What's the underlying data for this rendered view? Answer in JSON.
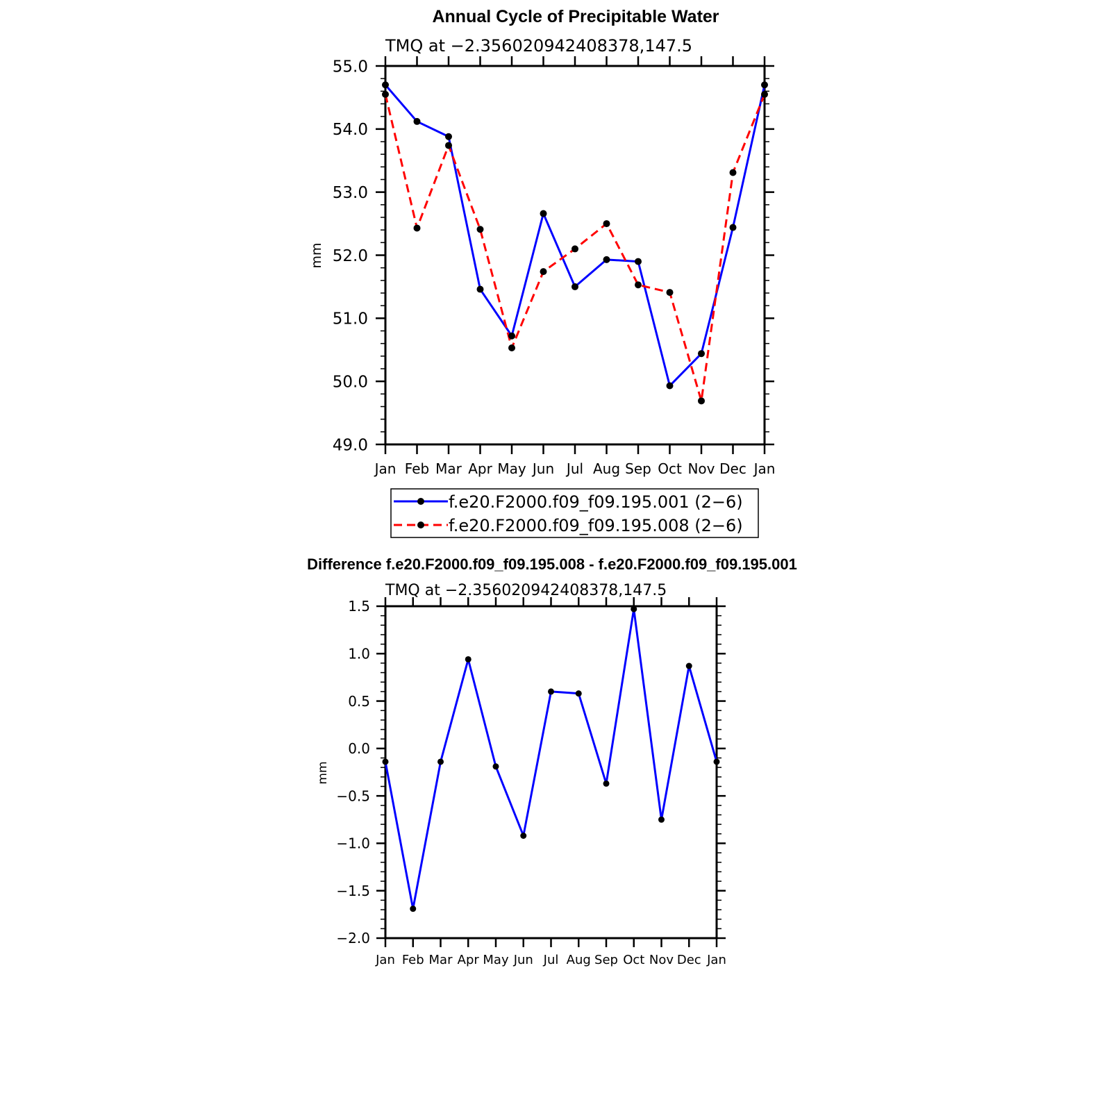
{
  "chart_data": [
    {
      "type": "line",
      "title": "Annual Cycle of Precipitable Water",
      "subtitle": "TMQ  at  −2.356020942408378,147.5",
      "ylabel": "mm",
      "categories": [
        "Jan",
        "Feb",
        "Mar",
        "Apr",
        "May",
        "Jun",
        "Jul",
        "Aug",
        "Sep",
        "Oct",
        "Nov",
        "Dec",
        "Jan"
      ],
      "ylim": [
        49.0,
        55.0
      ],
      "yticks": [
        "49.0",
        "50.0",
        "51.0",
        "52.0",
        "53.0",
        "54.0",
        "55.0"
      ],
      "series": [
        {
          "name": "f.e20.F2000.f09_f09.195.001 (2−6)",
          "color": "#0000ff",
          "dash": "solid",
          "values": [
            54.7,
            54.12,
            53.88,
            51.46,
            50.72,
            52.66,
            51.5,
            51.93,
            51.9,
            49.93,
            50.44,
            52.44,
            54.7
          ]
        },
        {
          "name": "f.e20.F2000.f09_f09.195.008 (2−6)",
          "color": "#ff0000",
          "dash": "dashed",
          "values": [
            54.55,
            52.43,
            53.74,
            52.41,
            50.53,
            51.74,
            52.1,
            52.5,
            51.53,
            51.41,
            49.69,
            53.31,
            54.55
          ]
        }
      ],
      "legend": "bottom"
    },
    {
      "type": "line",
      "title": "Difference f.e20.F2000.f09_f09.195.008 - f.e20.F2000.f09_f09.195.001",
      "subtitle": "TMQ  at  −2.356020942408378,147.5",
      "ylabel": "mm",
      "categories": [
        "Jan",
        "Feb",
        "Mar",
        "Apr",
        "May",
        "Jun",
        "Jul",
        "Aug",
        "Sep",
        "Oct",
        "Nov",
        "Dec",
        "Jan"
      ],
      "ylim": [
        -2.0,
        1.5
      ],
      "yticks": [
        "−2.0",
        "−1.5",
        "−1.0",
        "−0.5",
        "0.0",
        "0.5",
        "1.0",
        "1.5"
      ],
      "series": [
        {
          "name": "Difference",
          "color": "#0000ff",
          "dash": "solid",
          "values": [
            -0.14,
            -1.69,
            -0.14,
            0.94,
            -0.19,
            -0.92,
            0.6,
            0.58,
            -0.37,
            1.47,
            -0.75,
            0.87,
            -0.14
          ]
        }
      ]
    }
  ]
}
